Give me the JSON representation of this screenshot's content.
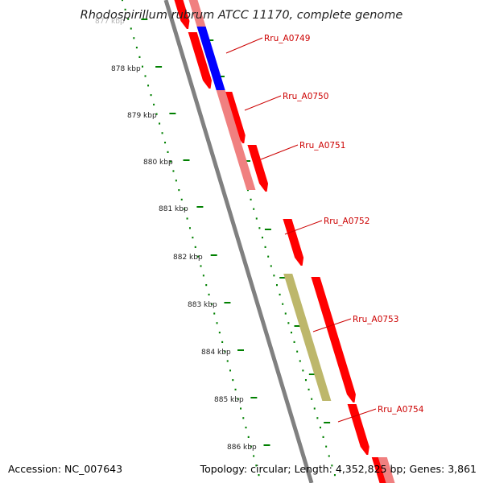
{
  "title": "Rhodospirillum rubrum ATCC 11170, complete genome",
  "accession": "Accession: NC_007643",
  "summary": "Topology: circular; Length: 4,352,825 bp; Genes: 3,861",
  "ticks": [
    "877 kbp",
    "878 kbp",
    "879 kbp",
    "880 kbp",
    "881 kbp",
    "882 kbp",
    "883 kbp",
    "884 kbp",
    "885 kbp",
    "886 kbp"
  ],
  "gene_labels": [
    "Rru_A0749",
    "Rru_A0750",
    "Rru_A0751",
    "Rru_A0752",
    "Rru_A0753",
    "Rru_A0754"
  ],
  "colors": {
    "forward_cds": "#ff0000",
    "highlight_blue": "#0000ff",
    "highlight_pink": "#f08080",
    "highlight_olive": "#bdb76b",
    "label": "#cc0000",
    "ruler": "#008000",
    "backbone": "#808080"
  }
}
